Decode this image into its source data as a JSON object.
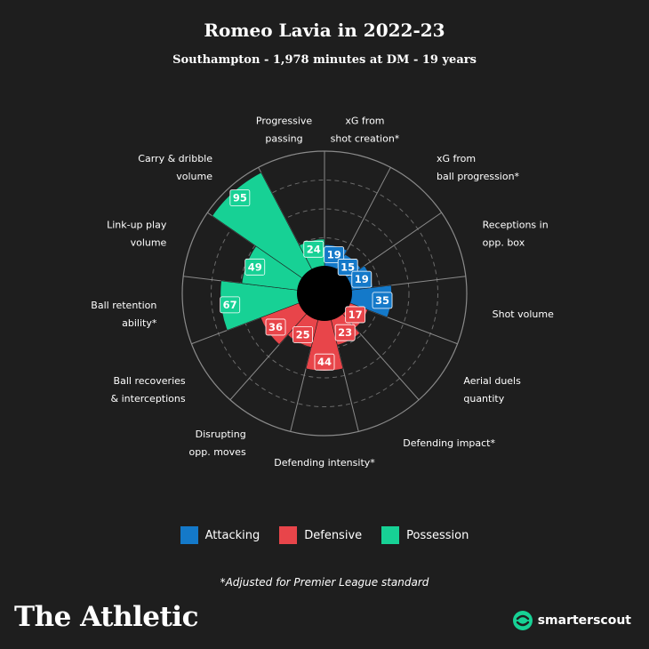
{
  "header": {
    "title": "Romeo Lavia in 2022-23",
    "subtitle": "Southampton - 1,978 minutes at DM - 19 years"
  },
  "colors": {
    "attacking": "#1479c9",
    "defensive": "#e8454a",
    "possession": "#17d195",
    "background": "#1e1e1e"
  },
  "legend": [
    {
      "label": "Attacking",
      "color": "#1479c9"
    },
    {
      "label": "Defensive",
      "color": "#e8454a"
    },
    {
      "label": "Possession",
      "color": "#17d195"
    }
  ],
  "footnote": "*Adjusted for Premier League standard",
  "brand": "The Athletic",
  "partner": {
    "name": "smarterscout",
    "icon": "smarterscout-logo-icon"
  },
  "chart_data": {
    "type": "polar-bar",
    "range": [
      0,
      100
    ],
    "grid_rings": [
      25,
      50,
      75
    ],
    "categories": [
      "xG from shot creation*",
      "xG from ball progression*",
      "Receptions in opp. box",
      "Shot volume",
      "Aerial duels quantity",
      "Defending impact*",
      "Defending intensity*",
      "Disrupting opp. moves",
      "Ball recoveries & interceptions",
      "Ball retention ability*",
      "Link-up play volume",
      "Carry & dribble volume",
      "Progressive passing"
    ],
    "label_lines": [
      [
        "xG from",
        "shot creation*"
      ],
      [
        "xG from",
        "ball progression*"
      ],
      [
        "Receptions in",
        "opp. box"
      ],
      [
        "Shot volume"
      ],
      [
        "Aerial duels",
        "quantity"
      ],
      [
        "Defending impact*"
      ],
      [
        "Defending intensity*"
      ],
      [
        "Disrupting",
        "opp. moves"
      ],
      [
        "Ball recoveries",
        "& interceptions"
      ],
      [
        "Ball retention",
        "ability*"
      ],
      [
        "Link-up play",
        "volume"
      ],
      [
        "Carry & dribble",
        "volume"
      ],
      [
        "Progressive",
        "passing"
      ]
    ],
    "values": [
      19,
      15,
      19,
      35,
      17,
      23,
      44,
      25,
      36,
      67,
      49,
      95,
      24
    ],
    "groups": [
      "Attacking",
      "Attacking",
      "Attacking",
      "Attacking",
      "Defensive",
      "Defensive",
      "Defensive",
      "Defensive",
      "Defensive",
      "Possession",
      "Possession",
      "Possession",
      "Possession"
    ]
  }
}
